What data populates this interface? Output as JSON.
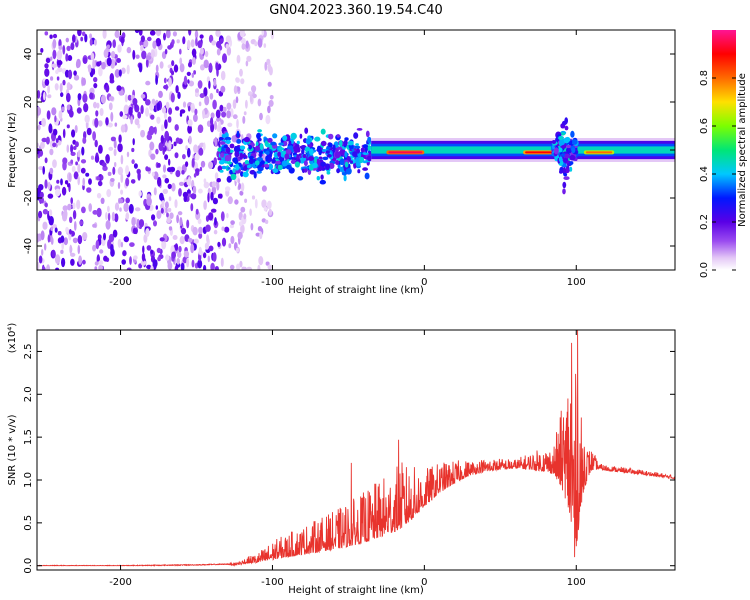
{
  "title": "GN04.2023.360.19.54.C40",
  "colors": {
    "snr_line": "#e8332d",
    "colormap": [
      "#ffffff",
      "#e4c8f6",
      "#9b4cf0",
      "#5a00e6",
      "#0018ff",
      "#00c8ff",
      "#00e676",
      "#7cff00",
      "#ffe000",
      "#ff6a00",
      "#ff0000",
      "#ff1493"
    ]
  },
  "chart_data": [
    {
      "id": "spectrogram",
      "type": "heatmap",
      "title": "GN04.2023.360.19.54.C40",
      "xlabel": "Height of straight line (km)",
      "ylabel": "Frequency (Hz)",
      "xlim": [
        -255,
        165
      ],
      "ylim": [
        -50,
        50
      ],
      "xticks": [
        -200,
        -100,
        0,
        100
      ],
      "yticks": [
        -40,
        -20,
        0,
        20,
        40
      ],
      "xtick_labels": [
        "-200",
        "-100",
        "0",
        "100"
      ],
      "ytick_labels": [
        "-40",
        "-20",
        "0",
        "20",
        "40"
      ],
      "colorbar": {
        "label": "Normalized spectral amplitude",
        "range": [
          0.0,
          1.0
        ],
        "ticks": [
          0.0,
          0.2,
          0.4,
          0.6,
          0.8
        ],
        "tick_labels": [
          "0.0",
          "0.2",
          "0.4",
          "0.6",
          "0.8"
        ]
      },
      "regions": [
        {
          "x_range": [
            -255,
            -130
          ],
          "f_range": [
            -50,
            50
          ],
          "amplitude": 0.1,
          "pattern": "scattered"
        },
        {
          "x_range": [
            -130,
            -100
          ],
          "f_range": [
            -50,
            50
          ],
          "amplitude": 0.05,
          "pattern": "sparse"
        },
        {
          "x_range": [
            -135,
            -35
          ],
          "f_range": [
            -15,
            10
          ],
          "amplitude": 0.3,
          "pattern": "cluster"
        },
        {
          "x_range": [
            -35,
            165
          ],
          "f_range": [
            -5,
            5
          ],
          "amplitude": 0.45,
          "pattern": "band"
        },
        {
          "x_range": [
            -25,
            0
          ],
          "f_range": [
            -2,
            2
          ],
          "amplitude": 0.95,
          "pattern": "core"
        },
        {
          "x_range": [
            65,
            85
          ],
          "f_range": [
            -2,
            2
          ],
          "amplitude": 0.9,
          "pattern": "core"
        },
        {
          "x_range": [
            85,
            100
          ],
          "f_range": [
            -25,
            25
          ],
          "amplitude": 0.3,
          "pattern": "spike"
        },
        {
          "x_range": [
            105,
            125
          ],
          "f_range": [
            -2,
            2
          ],
          "amplitude": 0.8,
          "pattern": "core"
        }
      ]
    },
    {
      "id": "snr",
      "type": "line",
      "xlabel": "Height of straight line (km)",
      "ylabel": "SNR (10 * v/v)",
      "y_multiplier_label": "(x10⁴)",
      "xlim": [
        -255,
        165
      ],
      "ylim": [
        -0.05,
        2.75
      ],
      "xticks": [
        -200,
        -100,
        0,
        100
      ],
      "yticks": [
        0.0,
        0.5,
        1.0,
        1.5,
        2.0,
        2.5
      ],
      "xtick_labels": [
        "-200",
        "-100",
        "0",
        "100"
      ],
      "ytick_labels": [
        "0.0",
        "0.5",
        "1.0",
        "1.5",
        "2.0",
        "2.5"
      ],
      "envelope": {
        "x": [
          -255,
          -200,
          -150,
          -125,
          -110,
          -100,
          -80,
          -60,
          -40,
          -20,
          -10,
          0,
          10,
          20,
          30,
          40,
          50,
          60,
          70,
          80,
          85,
          90,
          95,
          98,
          100,
          102,
          105,
          110,
          120,
          140,
          165
        ],
        "y": [
          0.0,
          0.0,
          0.01,
          0.02,
          0.05,
          0.1,
          0.18,
          0.25,
          0.35,
          0.5,
          0.6,
          0.75,
          0.9,
          1.0,
          1.08,
          1.12,
          1.14,
          1.15,
          1.15,
          1.14,
          1.12,
          1.05,
          0.9,
          0.6,
          0.5,
          0.7,
          1.0,
          1.15,
          1.12,
          1.08,
          1.02
        ]
      },
      "noise": {
        "x": [
          -255,
          -130,
          -110,
          -100,
          -60,
          -30,
          -15,
          0,
          30,
          60,
          85,
          92,
          98,
          103,
          108,
          115,
          165
        ],
        "amplitude": [
          0.005,
          0.005,
          0.05,
          0.1,
          0.2,
          0.3,
          0.35,
          0.2,
          0.08,
          0.05,
          0.15,
          0.5,
          1.1,
          0.5,
          0.15,
          0.03,
          0.02
        ]
      },
      "peaks": [
        {
          "x": -17,
          "y": 1.47
        },
        {
          "x": -48,
          "y": 1.2
        },
        {
          "x": 97,
          "y": 2.6
        },
        {
          "x": 101,
          "y": 2.75
        },
        {
          "x": 99,
          "y": 0.1
        }
      ]
    }
  ]
}
